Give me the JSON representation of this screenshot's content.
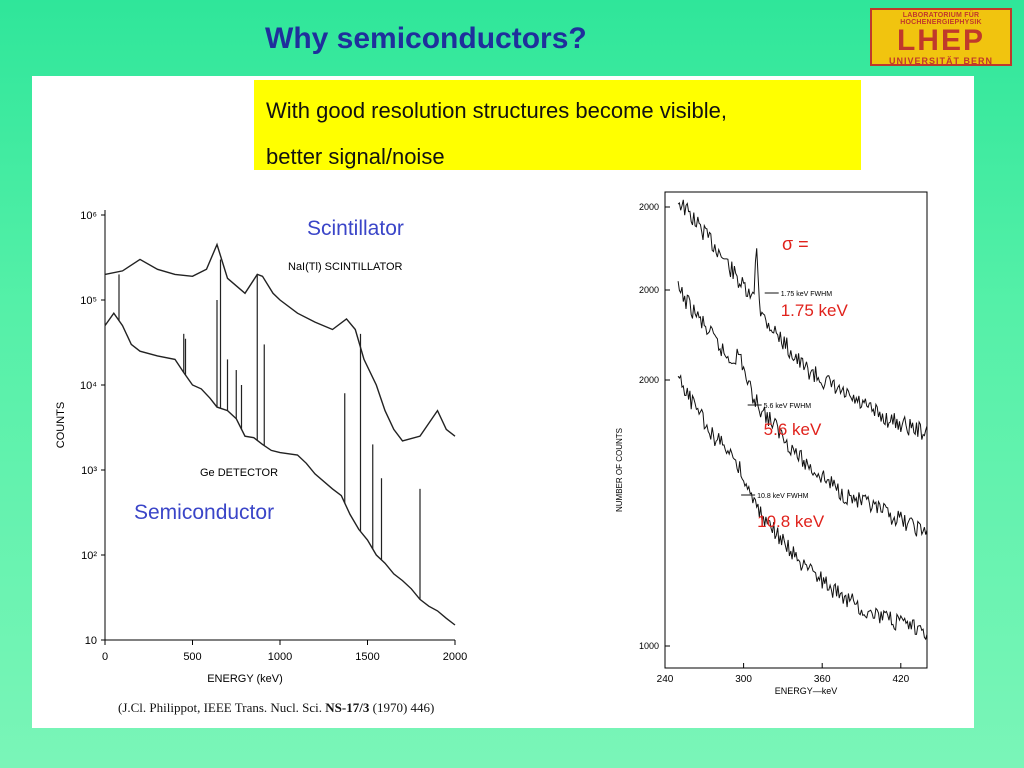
{
  "slide": {
    "title": "Why semiconductors?",
    "logo": {
      "line1": "LABORATORIUM FÜR HOCHENERGIEPHYSIK",
      "line2": "LHEP",
      "line3": "UNIVERSITÄT BERN"
    },
    "note_line1": "With good resolution structures become visible,",
    "note_line2": "better signal/noise",
    "citation_pre": "(J.Cl. Philippot, IEEE Trans. Nucl. Sci. ",
    "citation_bold": "NS-17/3",
    "citation_post": " (1970) 446)"
  },
  "chart_data": [
    {
      "type": "line",
      "xlabel": "ENERGY (keV)",
      "ylabel": "COUNTS",
      "yscale": "log",
      "xlim": [
        0,
        2000
      ],
      "ylim": [
        10,
        1000000
      ],
      "x_ticks": [
        "0",
        "500",
        "1000",
        "1500",
        "2000"
      ],
      "y_ticks": [
        "10",
        "10²",
        "10³",
        "10⁴",
        "10⁵",
        "10⁶"
      ],
      "series": [
        {
          "name": "NaI(Tl) SCINTILLATOR",
          "x": [
            0,
            100,
            200,
            300,
            400,
            500,
            580,
            640,
            700,
            800,
            870,
            900,
            960,
            1000,
            1100,
            1200,
            1300,
            1380,
            1430,
            1480,
            1550,
            1600,
            1650,
            1700,
            1800,
            1900,
            1950,
            2000
          ],
          "y": [
            200000,
            220000,
            300000,
            230000,
            200000,
            190000,
            230000,
            450000,
            180000,
            120000,
            200000,
            190000,
            120000,
            100000,
            70000,
            55000,
            45000,
            60000,
            45000,
            20000,
            10000,
            5000,
            3000,
            2200,
            2500,
            5000,
            3000,
            2500
          ]
        },
        {
          "name": "Ge DETECTOR",
          "x": [
            0,
            50,
            100,
            150,
            200,
            300,
            400,
            450,
            500,
            550,
            600,
            640,
            700,
            750,
            800,
            850,
            900,
            950,
            1000,
            1100,
            1150,
            1200,
            1300,
            1350,
            1400,
            1450,
            1500,
            1550,
            1600,
            1650,
            1700,
            1750,
            1800,
            1850,
            1900,
            1950,
            2000
          ],
          "y": [
            50000,
            70000,
            50000,
            30000,
            25000,
            22000,
            20000,
            14000,
            10000,
            9000,
            7000,
            5500,
            5000,
            4000,
            2500,
            2400,
            2000,
            1700,
            1600,
            1500,
            1200,
            900,
            600,
            500,
            300,
            200,
            150,
            100,
            80,
            60,
            50,
            40,
            30,
            25,
            22,
            18,
            15
          ]
        }
      ],
      "annotations": [
        "Scintillator",
        "Semiconductor"
      ]
    },
    {
      "type": "line",
      "xlabel": "ENERGY—keV",
      "ylabel": "NUMBER OF COUNTS",
      "xlim": [
        240,
        440
      ],
      "x_ticks": [
        "240",
        "300",
        "360",
        "420"
      ],
      "y_ticks": [
        "2000",
        "2000",
        "2000",
        "1000"
      ],
      "series": [
        {
          "fwhm_label": "1.75 keV FWHM",
          "resolution": "1.75 keV"
        },
        {
          "fwhm_label": "5.6 keV FWHM",
          "resolution": "5.6 keV"
        },
        {
          "fwhm_label": "10.8 keV FWHM",
          "resolution": "10.8 keV"
        }
      ],
      "annotations": [
        "σ ="
      ]
    }
  ]
}
